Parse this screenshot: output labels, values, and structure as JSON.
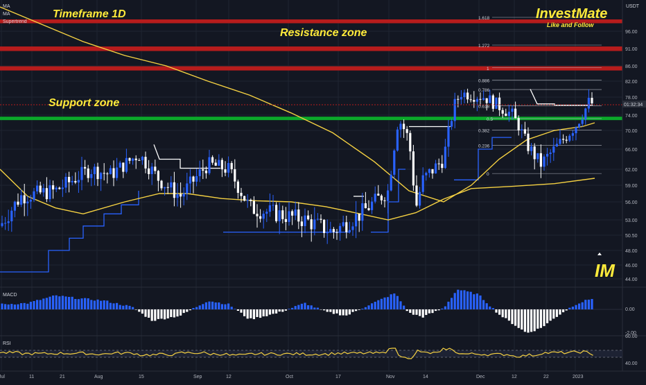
{
  "brand": {
    "name": "InvestMate",
    "tagline": "Like and Follow",
    "logo_text": "IM"
  },
  "annotations": {
    "timeframe": "Timeframe 1D",
    "resistance": "Resistance zone",
    "support": "Support zone"
  },
  "indicators_legend": [
    "MA",
    "MA",
    "Supertrend"
  ],
  "panels": {
    "macd_label": "MACD",
    "rsi_label": "RSI"
  },
  "price_axis": {
    "currency": "USDT",
    "ticks": [
      "96.00",
      "91.00",
      "86.00",
      "82.00",
      "78.00",
      "74.00",
      "70.00",
      "66.00",
      "62.00",
      "59.00",
      "56.00",
      "53.00",
      "50.50",
      "48.00",
      "46.00",
      "44.00"
    ],
    "current_price_label": "01:32:34"
  },
  "macd_axis": {
    "ticks": [
      "0.00",
      "-2.00"
    ]
  },
  "rsi_axis": {
    "ticks": [
      "60.00",
      "40.00"
    ]
  },
  "time_axis": {
    "labels": [
      "Jul",
      "11",
      "21",
      "Aug",
      "15",
      "Sep",
      "12",
      "Oct",
      "17",
      "Nov",
      "14",
      "Dec",
      "12",
      "22",
      "2023"
    ]
  },
  "fib_levels": {
    "labels": [
      "1.618",
      "1.272",
      "1",
      "0.886",
      "0.786",
      "0.618",
      "0.5",
      "0.382",
      "0.236",
      "0"
    ]
  },
  "colors": {
    "background": "#131722",
    "bull": "#2962ff",
    "bear": "#ffffff",
    "resistance": "#b71c1c",
    "support": "#0ba82a",
    "ma": "#f5d142",
    "accent_text": "#ffeb3b"
  },
  "chart_data": {
    "type": "candlestick",
    "ylim": [
      44,
      101
    ],
    "resistance_zones": [
      [
        98.3,
        99.4
      ],
      [
        90.3,
        91.6
      ],
      [
        84.8,
        85.9
      ]
    ],
    "support_zone": [
      72.7,
      73.6
    ],
    "supertrend_level_near_current": 76.2,
    "ma_long_end": 72.0,
    "ma_short_end": 60.3,
    "macd_ylim": [
      -2.3,
      2.0
    ],
    "rsi_ylim": [
      34,
      68
    ],
    "rsi_levels": [
      40,
      60
    ],
    "fib_prices": {
      "1.618": 100.0,
      "1.272": 92.0,
      "1": 85.5,
      "0.886": 82.3,
      "0.786": 79.9,
      "0.618": 76.1,
      "0.5": 73.1,
      "0.382": 70.1,
      "0.236": 66.8,
      "0": 61.2
    }
  }
}
